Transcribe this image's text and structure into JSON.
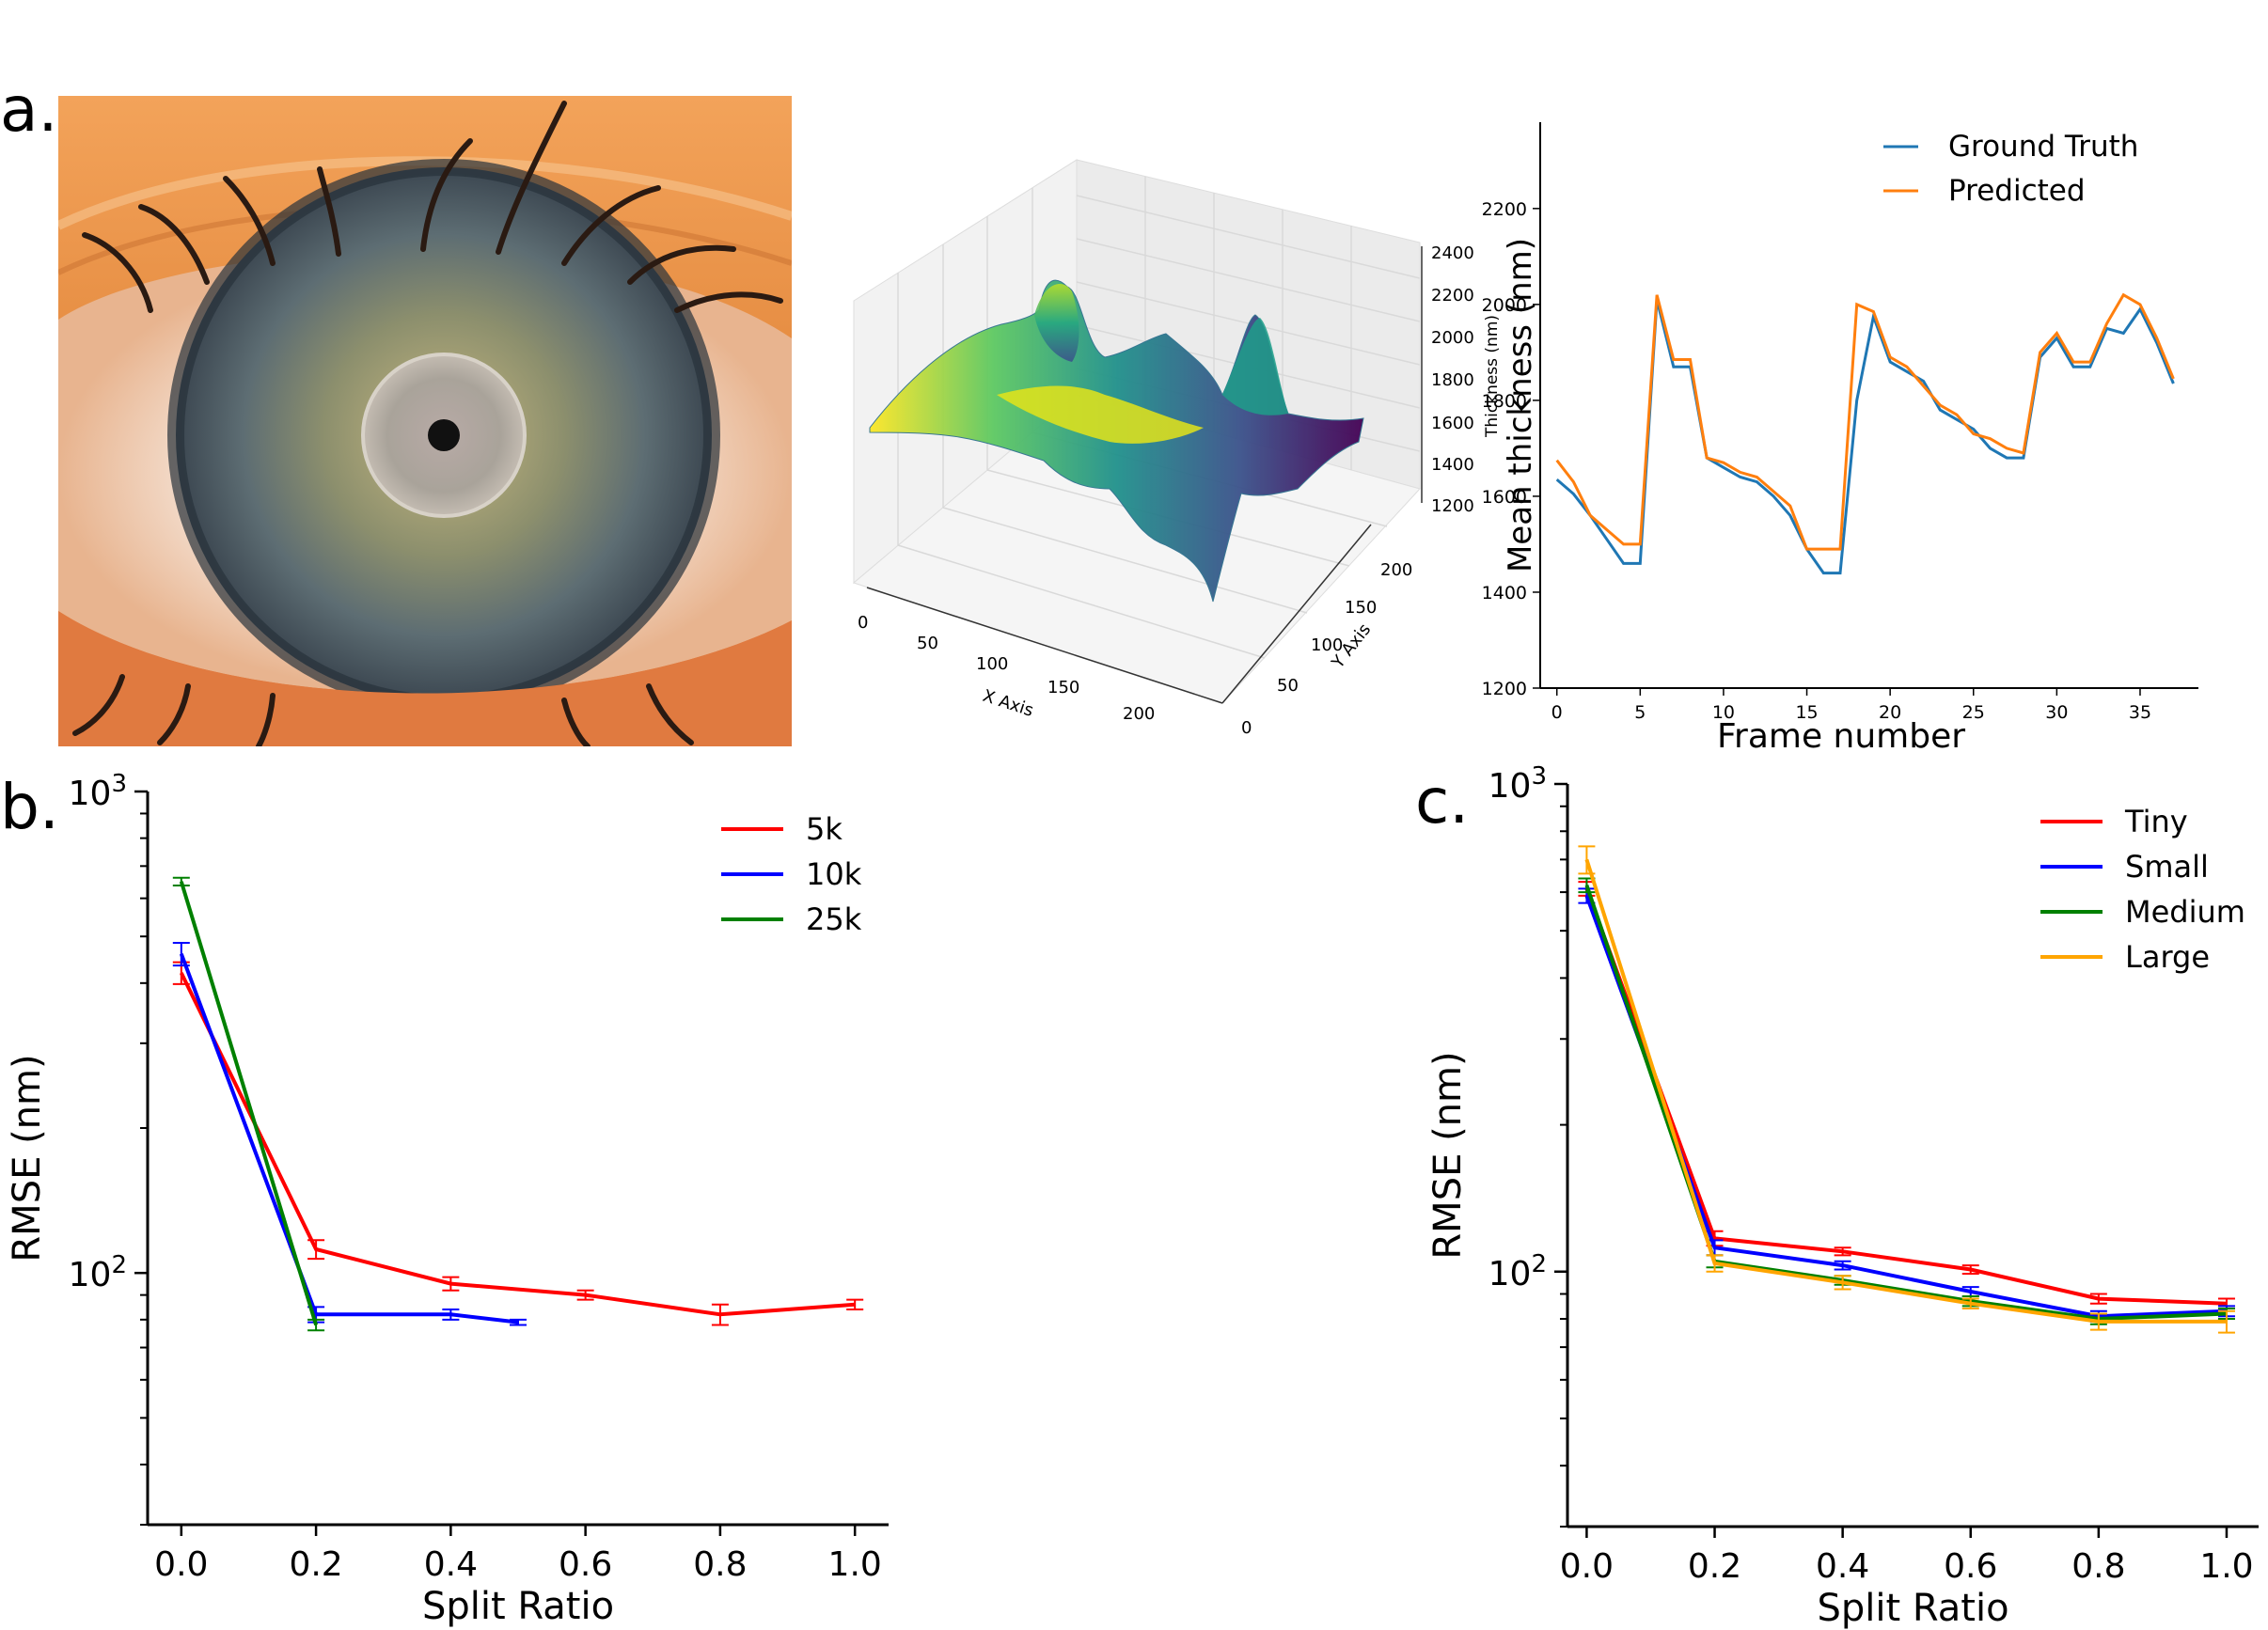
{
  "panel_labels": {
    "a": "a.",
    "b": "b.",
    "c": "c."
  },
  "colors": {
    "blue": "#1f77b4",
    "orange": "#ff7f0e",
    "red": "#ff0000",
    "navy": "#0000ff",
    "green": "#008000",
    "gold": "#ffa500"
  },
  "chart_data": [
    {
      "id": "a-surface",
      "type": "surface3d",
      "xlabel": "X Axis",
      "ylabel": "Y Axis",
      "zlabel": "Thickness (nm)",
      "x_ticks": [
        "0",
        "50",
        "100",
        "150",
        "200"
      ],
      "y_ticks": [
        "0",
        "50",
        "100",
        "150",
        "200"
      ],
      "z_ticks": [
        "1200",
        "1400",
        "1600",
        "1800",
        "2000",
        "2200",
        "2400"
      ],
      "colormap": "viridis"
    },
    {
      "id": "a-thickness",
      "type": "line",
      "xlabel": "Frame number",
      "ylabel": "Mean thickness (nm)",
      "xlim": [
        -1,
        38.5
      ],
      "ylim": [
        1200,
        2380
      ],
      "x_ticks": [
        0,
        5,
        10,
        15,
        20,
        25,
        30,
        35
      ],
      "y_ticks": [
        1200,
        1400,
        1600,
        1800,
        2000,
        2200
      ],
      "legend": "top-right",
      "series": [
        {
          "name": "Ground Truth",
          "color": "#1f77b4",
          "x": [
            0,
            1,
            2,
            3,
            4,
            5,
            6,
            7,
            8,
            9,
            10,
            11,
            12,
            13,
            14,
            15,
            16,
            17,
            18,
            19,
            20,
            21,
            22,
            23,
            24,
            25,
            26,
            27,
            28,
            29,
            30,
            31,
            32,
            33,
            34,
            35,
            36,
            37
          ],
          "values": [
            1635,
            1605,
            1560,
            1510,
            1460,
            1460,
            2010,
            1870,
            1870,
            1680,
            1660,
            1640,
            1630,
            1600,
            1560,
            1490,
            1440,
            1440,
            1800,
            1975,
            1880,
            1860,
            1840,
            1780,
            1760,
            1740,
            1700,
            1680,
            1680,
            1890,
            1930,
            1870,
            1870,
            1950,
            1940,
            1990,
            1920,
            1835
          ]
        },
        {
          "name": "Predicted",
          "color": "#ff7f0e",
          "x": [
            0,
            1,
            2,
            3,
            4,
            5,
            6,
            7,
            8,
            9,
            10,
            11,
            12,
            13,
            14,
            15,
            16,
            17,
            18,
            19,
            20,
            21,
            22,
            23,
            24,
            25,
            26,
            27,
            28,
            29,
            30,
            31,
            32,
            33,
            34,
            35,
            36,
            37
          ],
          "values": [
            1675,
            1630,
            1560,
            1530,
            1500,
            1500,
            2020,
            1885,
            1885,
            1680,
            1670,
            1650,
            1640,
            1610,
            1580,
            1490,
            1490,
            1490,
            2000,
            1985,
            1890,
            1870,
            1830,
            1790,
            1770,
            1730,
            1720,
            1700,
            1690,
            1900,
            1940,
            1880,
            1880,
            1960,
            2020,
            2000,
            1930,
            1845
          ]
        }
      ]
    },
    {
      "id": "b",
      "type": "line",
      "xlabel": "Split Ratio",
      "ylabel": "RMSE (nm)",
      "yscale": "log",
      "xlim": [
        -0.05,
        1.05
      ],
      "ylim": [
        30,
        1000
      ],
      "x_ticks": [
        "0.0",
        "0.2",
        "0.4",
        "0.6",
        "0.8",
        "1.0"
      ],
      "y_major_ticks": [
        {
          "value": 100,
          "base": "10",
          "exp": "2"
        },
        {
          "value": 1000,
          "base": "10",
          "exp": "3"
        }
      ],
      "legend": "top-right",
      "series": [
        {
          "name": "5k",
          "color": "#ff0000",
          "x": [
            0,
            0.2,
            0.4,
            0.6,
            0.8,
            1.0
          ],
          "values": [
            420,
            112,
            95,
            90,
            82,
            86
          ],
          "err": [
            22,
            5,
            3,
            2,
            4,
            2
          ]
        },
        {
          "name": "10k",
          "color": "#0000ff",
          "x": [
            0,
            0.2,
            0.4,
            0.5
          ],
          "values": [
            460,
            82,
            82,
            79
          ],
          "err": [
            25,
            3,
            2,
            1
          ]
        },
        {
          "name": "25k",
          "color": "#008000",
          "x": [
            0,
            0.2
          ],
          "values": [
            650,
            78
          ],
          "err": [
            12,
            2
          ]
        }
      ]
    },
    {
      "id": "c",
      "type": "line",
      "xlabel": "Split Ratio",
      "ylabel": "RMSE (nm)",
      "yscale": "log",
      "xlim": [
        -0.03,
        1.05
      ],
      "ylim": [
        30,
        1000
      ],
      "x_ticks": [
        "0.0",
        "0.2",
        "0.4",
        "0.6",
        "0.8",
        "1.0"
      ],
      "y_major_ticks": [
        {
          "value": 100,
          "base": "10",
          "exp": "2"
        },
        {
          "value": 1000,
          "base": "10",
          "exp": "3"
        }
      ],
      "legend": "top-right",
      "series": [
        {
          "name": "Tiny",
          "color": "#ff0000",
          "x": [
            0,
            0.2,
            0.4,
            0.6,
            0.8,
            1.0
          ],
          "values": [
            610,
            117,
            110,
            101,
            88,
            86
          ],
          "err": [
            20,
            4,
            2,
            2,
            2,
            2
          ]
        },
        {
          "name": "Small",
          "color": "#0000ff",
          "x": [
            0,
            0.2,
            0.4,
            0.6,
            0.8,
            1.0
          ],
          "values": [
            590,
            112,
            103,
            91,
            81,
            83
          ],
          "err": [
            20,
            4,
            2,
            2,
            2,
            2
          ]
        },
        {
          "name": "Medium",
          "color": "#008000",
          "x": [
            0,
            0.2,
            0.4,
            0.6,
            0.8,
            1.0
          ],
          "values": [
            620,
            105,
            96,
            87,
            80,
            82
          ],
          "err": [
            20,
            3,
            2,
            2,
            2,
            2
          ]
        },
        {
          "name": "Large",
          "color": "#ffa500",
          "x": [
            0,
            0.2,
            0.4,
            0.6,
            0.8,
            1.0
          ],
          "values": [
            700,
            104,
            95,
            86,
            79,
            79
          ],
          "err": [
            45,
            4,
            3,
            2,
            3,
            4
          ]
        }
      ]
    }
  ]
}
